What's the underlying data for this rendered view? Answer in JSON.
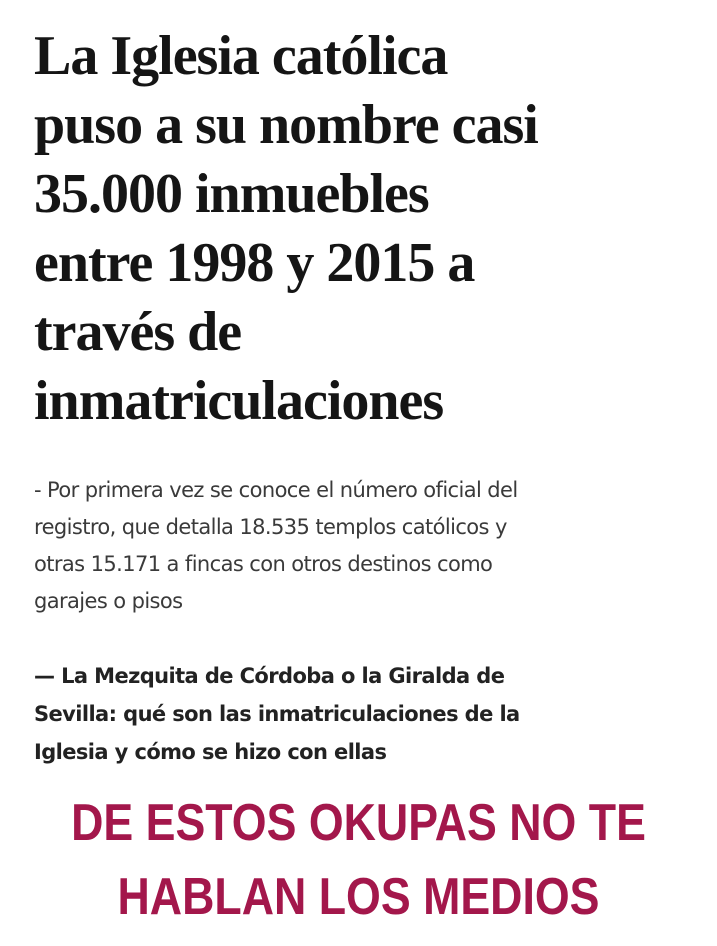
{
  "article": {
    "headline": [
      "La Iglesia católica",
      "puso a su nombre casi",
      "35.000 inmuebles",
      "entre 1998 y 2015 a",
      "través de",
      "inmatriculaciones"
    ],
    "subtitle": [
      "- Por primera vez se conoce el número oficial del",
      "registro, que detalla 18.535 templos católicos y",
      "otras 15.171 a fincas con otros destinos como",
      "garajes o pisos"
    ],
    "related": [
      "— La Mezquita de Córdoba o la Giralda de",
      "Sevilla: qué son las inmatriculaciones de la",
      "Iglesia y cómo se hizo con ellas"
    ]
  },
  "caption": [
    "DE ESTOS OKUPAS NO TE",
    "HABLAN LOS MEDIOS"
  ]
}
